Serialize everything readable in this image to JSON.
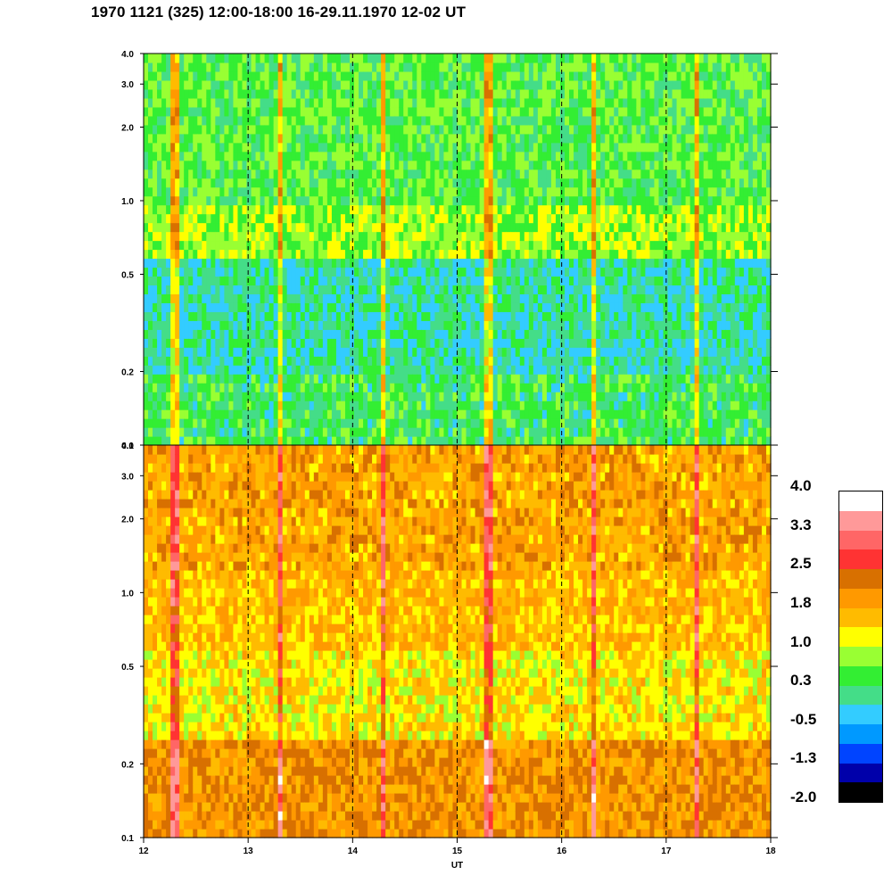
{
  "title": "1970 1121 (325) 12:00-18:00 16-29.11.1970  12-02 UT",
  "chart_data": [
    {
      "type": "heatmap",
      "panel": "upper",
      "x_range": [
        12,
        18
      ],
      "y_range": [
        0.1,
        4.0
      ],
      "y_scale": "log",
      "y_ticks": [
        "0.1",
        "0.2",
        "0.5",
        "1.0",
        "2.0",
        "3.0",
        "4.0"
      ],
      "x_ticks": [],
      "dominant_levels": {
        "below_0.2": 0.3,
        "0.2_to_0.6": 0.0,
        "0.6_to_1.0": 0.8,
        "above_1.0": 0.5
      },
      "event_times": [
        12.3,
        13.3,
        14.3,
        15.3,
        16.3,
        17.3
      ],
      "dashed_lines_at": [
        13,
        14,
        15,
        16,
        17
      ]
    },
    {
      "type": "heatmap",
      "panel": "lower",
      "x_range": [
        12,
        18
      ],
      "y_range": [
        0.1,
        4.0
      ],
      "y_scale": "log",
      "y_ticks": [
        "0.1",
        "0.2",
        "0.5",
        "1.0",
        "2.0",
        "3.0",
        "4.0"
      ],
      "x_ticks": [
        "12",
        "13",
        "14",
        "15",
        "16",
        "17",
        "18"
      ],
      "xlabel": "UT",
      "dominant_levels": {
        "below_0.25": 2.0,
        "0.25_to_0.6": 1.3,
        "0.6_to_1.2": 1.6,
        "above_1.2": 1.8
      },
      "event_times": [
        12.3,
        13.3,
        14.3,
        15.3,
        16.3,
        17.3
      ],
      "dashed_lines_at": [
        13,
        14,
        15,
        16,
        17
      ]
    }
  ],
  "colorbar": {
    "labels": [
      "4.0",
      "3.3",
      "2.5",
      "1.8",
      "1.0",
      "0.3",
      "-0.5",
      "-1.3",
      "-2.0"
    ],
    "colors": [
      "#ffffff",
      "#ff9999",
      "#ff6666",
      "#ff3333",
      "#d87000",
      "#ff9900",
      "#ffbb00",
      "#ffff00",
      "#99ff33",
      "#33ee33",
      "#44dd88",
      "#33ccff",
      "#0099ff",
      "#0044ff",
      "#0000aa",
      "#000000"
    ]
  }
}
